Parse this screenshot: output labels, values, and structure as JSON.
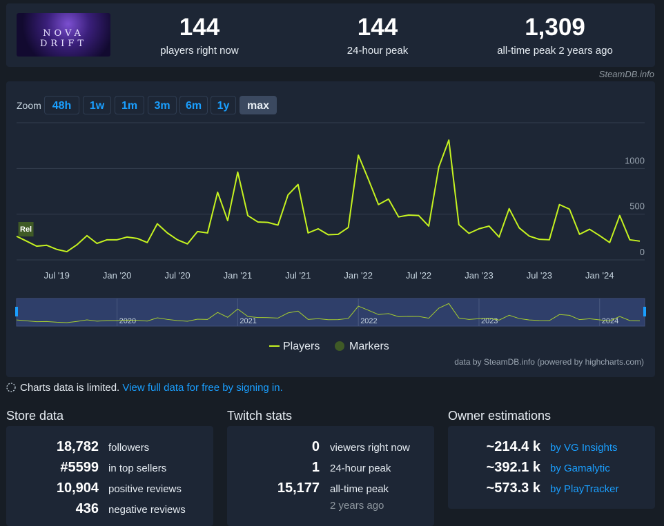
{
  "header": {
    "logo_text": "NOVA DRIFT",
    "stats": [
      {
        "value": "144",
        "label": "players right now"
      },
      {
        "value": "144",
        "label": "24-hour peak"
      },
      {
        "value": "1,309",
        "label": "all-time peak 2 years ago"
      }
    ],
    "source": "SteamDB.info"
  },
  "zoom": {
    "label": "Zoom",
    "buttons": [
      "48h",
      "1w",
      "1m",
      "3m",
      "6m",
      "1y",
      "max"
    ],
    "active": "max"
  },
  "chart_data": {
    "type": "line",
    "x": [
      "2019-03",
      "2019-04",
      "2019-05",
      "2019-06",
      "2019-07",
      "2019-08",
      "2019-09",
      "2019-10",
      "2019-11",
      "2019-12",
      "2020-01",
      "2020-02",
      "2020-03",
      "2020-04",
      "2020-05",
      "2020-06",
      "2020-07",
      "2020-08",
      "2020-09",
      "2020-10",
      "2020-11",
      "2020-12",
      "2021-01",
      "2021-02",
      "2021-03",
      "2021-04",
      "2021-05",
      "2021-06",
      "2021-07",
      "2021-08",
      "2021-09",
      "2021-10",
      "2021-11",
      "2021-12",
      "2022-01",
      "2022-02",
      "2022-03",
      "2022-04",
      "2022-05",
      "2022-06",
      "2022-07",
      "2022-08",
      "2022-09",
      "2022-10",
      "2022-11",
      "2022-12",
      "2023-01",
      "2023-02",
      "2023-03",
      "2023-04",
      "2023-05",
      "2023-06",
      "2023-07",
      "2023-08",
      "2023-09",
      "2023-10",
      "2023-11",
      "2023-12",
      "2024-01",
      "2024-02",
      "2024-03",
      "2024-04",
      "2024-05"
    ],
    "series": [
      {
        "name": "Players",
        "color": "#c6f320",
        "values": [
          258,
          205,
          150,
          160,
          115,
          90,
          165,
          265,
          180,
          220,
          220,
          250,
          235,
          190,
          395,
          295,
          220,
          175,
          310,
          295,
          740,
          430,
          960,
          485,
          415,
          410,
          380,
          710,
          825,
          295,
          340,
          275,
          280,
          355,
          1145,
          880,
          605,
          665,
          470,
          490,
          485,
          370,
          1015,
          1310,
          385,
          290,
          340,
          370,
          250,
          560,
          350,
          260,
          225,
          220,
          605,
          555,
          280,
          335,
          265,
          190,
          485,
          220,
          205
        ]
      }
    ],
    "xlim": [
      "2019-03",
      "2024-05"
    ],
    "xticks": [
      {
        "value": "2019-07",
        "label": "Jul '19"
      },
      {
        "value": "2020-01",
        "label": "Jan '20"
      },
      {
        "value": "2020-07",
        "label": "Jul '20"
      },
      {
        "value": "2021-01",
        "label": "Jan '21"
      },
      {
        "value": "2021-07",
        "label": "Jul '21"
      },
      {
        "value": "2022-01",
        "label": "Jan '22"
      },
      {
        "value": "2022-07",
        "label": "Jul '22"
      },
      {
        "value": "2023-01",
        "label": "Jan '23"
      },
      {
        "value": "2023-07",
        "label": "Jul '23"
      },
      {
        "value": "2024-01",
        "label": "Jan '24"
      }
    ],
    "ylim": [
      0,
      1500
    ],
    "yticks": [
      0,
      500,
      1000
    ],
    "grid": true,
    "markers": {
      "name": "Markers",
      "color": "#3f5a26",
      "points": [
        {
          "x": "2019-04",
          "label": "Rel"
        }
      ]
    },
    "navigator": {
      "ticks": [
        {
          "value": "2020-01",
          "label": "2020"
        },
        {
          "value": "2021-01",
          "label": "2021"
        },
        {
          "value": "2022-01",
          "label": "2022"
        },
        {
          "value": "2023-01",
          "label": "2023"
        },
        {
          "value": "2024-01",
          "label": "2024"
        }
      ]
    },
    "credits": "data by SteamDB.info (powered by highcharts.com)"
  },
  "notice": {
    "text": "Charts data is limited.",
    "link": "View full data for free by signing in."
  },
  "sections": [
    {
      "title": "Store data",
      "rows": [
        {
          "value": "18,782",
          "label": "followers"
        },
        {
          "value": "#5599",
          "label": "in top sellers"
        },
        {
          "value": "10,904",
          "label": "positive reviews"
        },
        {
          "value": "436",
          "label": "negative reviews"
        }
      ]
    },
    {
      "title": "Twitch stats",
      "rows": [
        {
          "value": "0",
          "label": "viewers right now"
        },
        {
          "value": "1",
          "label": "24-hour peak"
        },
        {
          "value": "15,177",
          "label": "all-time peak"
        }
      ],
      "note": "2 years ago"
    },
    {
      "title": "Owner estimations",
      "rows": [
        {
          "value": "~214.4 k",
          "label": "by VG Insights"
        },
        {
          "value": "~392.1 k",
          "label": "by Gamalytic"
        },
        {
          "value": "~573.3 k",
          "label": "by PlayTracker"
        }
      ]
    }
  ]
}
